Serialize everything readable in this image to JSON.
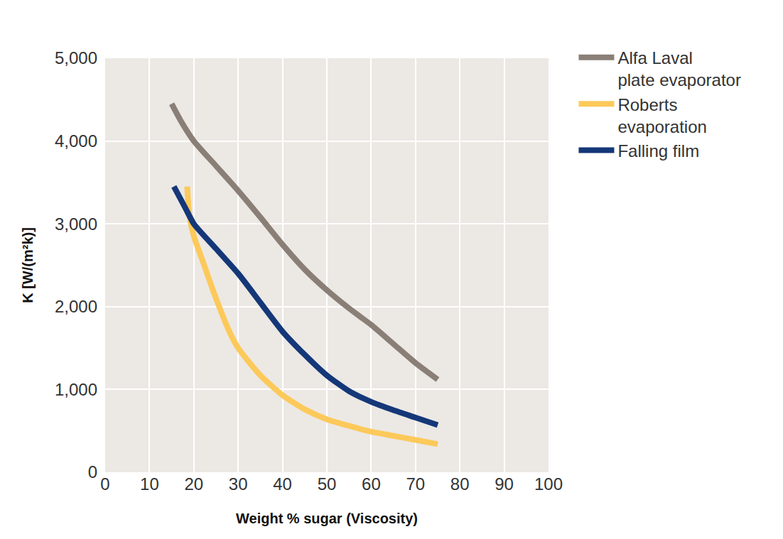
{
  "chart_data": {
    "type": "line",
    "x_label": "Weight % sugar (Viscosity)",
    "y_label": "K [W/(m²k)]",
    "xlim": [
      0,
      100
    ],
    "xticks": [
      0,
      10,
      20,
      30,
      40,
      50,
      60,
      70,
      80,
      90,
      100
    ],
    "ylim": [
      0,
      5000
    ],
    "yticks": [
      0,
      {
        "value": 1000,
        "label": "1,000"
      },
      {
        "value": 2000,
        "label": "2,000"
      },
      {
        "value": 3000,
        "label": "3,000"
      },
      {
        "value": 4000,
        "label": "4,000"
      },
      {
        "value": 5000,
        "label": "5,000"
      }
    ],
    "grid": true,
    "legend": "right",
    "series": [
      {
        "name": "Alfa Laval plate evaporator",
        "color": "#8a7f77",
        "line_style": "solid",
        "x": [
          15,
          17,
          20,
          25,
          30,
          35,
          40,
          45,
          50,
          55,
          60,
          65,
          70,
          75
        ],
        "values": [
          4450,
          4250,
          4000,
          3700,
          3400,
          3080,
          2750,
          2450,
          2200,
          1980,
          1780,
          1550,
          1320,
          1120
        ]
      },
      {
        "name": "Roberts evaporation",
        "color": "#fcc95a",
        "line_style": "solid",
        "x": [
          18.5,
          19,
          20,
          22,
          25,
          28,
          30,
          35,
          40,
          45,
          50,
          55,
          60,
          65,
          70,
          75
        ],
        "values": [
          3450,
          3100,
          2850,
          2550,
          2100,
          1700,
          1500,
          1170,
          930,
          760,
          640,
          560,
          490,
          440,
          390,
          340
        ]
      },
      {
        "name": "Falling film",
        "color": "#143778",
        "line_style": "solid",
        "x": [
          15.5,
          18,
          20,
          25,
          30,
          35,
          40,
          45,
          50,
          55,
          60,
          65,
          70,
          75
        ],
        "values": [
          3450,
          3200,
          3000,
          2700,
          2400,
          2050,
          1700,
          1420,
          1170,
          980,
          850,
          750,
          660,
          570
        ]
      }
    ]
  }
}
